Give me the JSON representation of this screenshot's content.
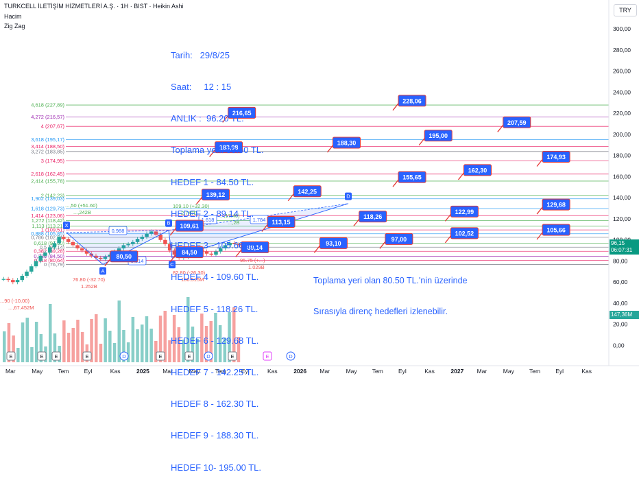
{
  "header": {
    "symbol_line": "TURKCELL İLETİŞİM HİZMETLERİ A.Ş. · 1H · BIST · Heikin Ashi",
    "indicator_1": "Hacim",
    "indicator_2": "Zig Zag",
    "currency": "TRY"
  },
  "annotation_lines": [
    "Tarih:   29/8/25",
    "Saat:     12 : 15",
    "ANLIK :  96.20 TL.",
    "Toplama yeri: 80.50 TL.",
    "HEDEF 1 - 84.50 TL.",
    "HEDEF 2 - 89.14 TL.",
    "HEDEF 3 - 105.66 TL.",
    "HEDEF 4 - 109.60 TL.",
    "HEDEF 5 - 118.26 TL.",
    "HEDEF 6 - 129.68 TL.",
    "HEDEF 7 - 142.25 TL.",
    "HEDEF 8 - 162.30 TL.",
    "HEDEF 9 - 188.30 TL.",
    "HEDEF 10- 195.00 TL."
  ],
  "note_lines": [
    "Toplama yeri olan 80.50 TL.'nin üzerinde",
    "Sırasıyla direnç hedefleri izlenebilir."
  ],
  "price_panel": {
    "last_price": "96,15",
    "countdown": "06:07:31",
    "volume_label": "147,36M",
    "last_color": "#089981",
    "volume_color": "#26a69a"
  },
  "chart_data": {
    "type": "candlestick",
    "y_axis_ticks": [
      0,
      20,
      40,
      60,
      80,
      100,
      120,
      140,
      160,
      180,
      200,
      220,
      240,
      260,
      280,
      300
    ],
    "y_axis_labels": [
      "0,00",
      "20,00",
      "40,00",
      "60,00",
      "80,00",
      "100,00",
      "120,00",
      "140,00",
      "160,00",
      "180,00",
      "200,00",
      "220,00",
      "240,00",
      "260,00",
      "280,00",
      "300,00"
    ],
    "x_axis_labels": [
      "Mar",
      "May",
      "Tem",
      "Eyl",
      "Kas",
      "2025",
      "Mar",
      "May",
      "Tem",
      "Eyl",
      "Kas",
      "2026",
      "Mar",
      "May",
      "Tem",
      "Eyl",
      "Kas",
      "2027",
      "Mar",
      "May",
      "Tem",
      "Eyl",
      "Kas"
    ],
    "x_axis_bold": [
      "2025",
      "2026",
      "2027"
    ],
    "price_range": [
      60,
      125
    ],
    "fib_levels": [
      {
        "label": "4,618 (227,89)",
        "value": 227.89,
        "color": "#4caf50"
      },
      {
        "label": "4,272 (216,57)",
        "value": 216.57,
        "color": "#9c27b0"
      },
      {
        "label": "4 (207,67)",
        "value": 207.67,
        "color": "#e91e63"
      },
      {
        "label": "3,618 (195,17)",
        "value": 195.17,
        "color": "#2196f3"
      },
      {
        "label": "3,414 (188,50)",
        "value": 188.5,
        "color": "#e91e63"
      },
      {
        "label": "3,272 (183,85)",
        "value": 183.85,
        "color": "#787b86"
      },
      {
        "label": "3 (174,95)",
        "value": 174.95,
        "color": "#e91e63"
      },
      {
        "label": "2,618 (162,45)",
        "value": 162.45,
        "color": "#e91e63"
      },
      {
        "label": "2,414 (155,78)",
        "value": 155.78,
        "color": "#4caf50"
      },
      {
        "label": "2 (142,23)",
        "value": 142.23,
        "color": "#4caf50"
      },
      {
        "label": "1,902 (139,03)",
        "value": 139.03,
        "color": "#2196f3"
      },
      {
        "label": "1,618 (129,73)",
        "value": 129.73,
        "color": "#2196f3"
      },
      {
        "label": "1,414 (123,06)",
        "value": 123.06,
        "color": "#e91e63"
      },
      {
        "label": "1,272 (118,42)",
        "value": 118.42,
        "color": "#4caf50"
      },
      {
        "label": "1,113 (113,21)",
        "value": 113.21,
        "color": "#4caf50"
      },
      {
        "label": "1 (109,51)",
        "value": 109.51,
        "color": "#e91e63"
      },
      {
        "label": "0,888 (105,85)",
        "value": 105.85,
        "color": "#2196f3"
      },
      {
        "label": "0,786 (102,51)",
        "value": 102.51,
        "color": "#787b86"
      },
      {
        "label": "0,618 (97,00)",
        "value": 97.0,
        "color": "#4caf50"
      },
      {
        "label": "0,5 (93,14)",
        "value": 93.14,
        "color": "#787b86"
      },
      {
        "label": "0,382 (89,28)",
        "value": 89.28,
        "color": "#e91e63"
      },
      {
        "label": "0,236 (84,50)",
        "value": 84.5,
        "color": "#9c27b0"
      },
      {
        "label": "0,118 (80,64)",
        "value": 80.64,
        "color": "#e91e63"
      },
      {
        "label": "0 (76,79)",
        "value": 76.79,
        "color": "#787b86"
      }
    ],
    "target_callouts": [
      {
        "label": "228,06",
        "value": 228.06,
        "x": 15
      },
      {
        "label": "216,65",
        "value": 216.65,
        "x": 8.5
      },
      {
        "label": "207,59",
        "value": 207.59,
        "x": 19
      },
      {
        "label": "195,00",
        "value": 195.0,
        "x": 16
      },
      {
        "label": "188,30",
        "value": 188.3,
        "x": 12.5
      },
      {
        "label": "183,98",
        "value": 183.98,
        "x": 8
      },
      {
        "label": "174,93",
        "value": 174.93,
        "x": 20.5
      },
      {
        "label": "162,30",
        "value": 162.3,
        "x": 17.5
      },
      {
        "label": "155,65",
        "value": 155.65,
        "x": 15
      },
      {
        "label": "142,25",
        "value": 142.25,
        "x": 11
      },
      {
        "label": "139,12",
        "value": 139.12,
        "x": 7.5
      },
      {
        "label": "129,68",
        "value": 129.68,
        "x": 20.5
      },
      {
        "label": "122,99",
        "value": 122.99,
        "x": 17
      },
      {
        "label": "118,26",
        "value": 118.26,
        "x": 13.5
      },
      {
        "label": "113,15",
        "value": 113.15,
        "x": 10
      },
      {
        "label": "109,61",
        "value": 109.61,
        "x": 6.5
      },
      {
        "label": "105,66",
        "value": 105.66,
        "x": 20.5
      },
      {
        "label": "102,52",
        "value": 102.52,
        "x": 17
      },
      {
        "label": "97,00",
        "value": 97.0,
        "x": 14.5
      },
      {
        "label": "93,10",
        "value": 93.1,
        "x": 12
      },
      {
        "label": "89,14",
        "value": 89.14,
        "x": 9
      },
      {
        "label": "84,50",
        "value": 84.5,
        "x": 6.5
      },
      {
        "label": "80,50",
        "value": 80.5,
        "x": 4
      }
    ],
    "pattern_points": [
      {
        "label": "X",
        "value": 107
      },
      {
        "label": "A",
        "value": 76.8
      },
      {
        "label": "B",
        "value": 109.1
      },
      {
        "label": "C",
        "value": 82.8
      },
      {
        "label": "D",
        "value": 134.5
      }
    ],
    "pattern_ratios": [
      "0,988",
      "0,814",
      "1,618",
      "1,784"
    ],
    "zigzag_labels": [
      {
        "text": "76.80 (-32.70)",
        "sub": "1.252B"
      },
      {
        "text": "109.10 (+32.30)",
        "sub": "2.747B"
      },
      {
        "text": "82.80 (-26.30)",
        "sub": "186.515M"
      },
      {
        "text": "95.75 (+...)",
        "sub": "1.029B"
      },
      {
        "text": "...,50 (+51.60)",
        "sub": "...,242B"
      },
      {
        "text": "...,17.40)",
        "sub": "...,2B"
      },
      {
        "text": "...90 (-10,00)",
        "sub": "...,67.452M"
      }
    ],
    "event_markers": [
      "E",
      "E",
      "E",
      "E",
      "D",
      "E",
      "E",
      "D",
      "E",
      "E",
      "D"
    ],
    "close_series": [
      63,
      62,
      60,
      62,
      66,
      70,
      75,
      80,
      85,
      88,
      93,
      97,
      103,
      101,
      98,
      95,
      92,
      90,
      87,
      85,
      83,
      82,
      84,
      86,
      89,
      92,
      95,
      96,
      98,
      101,
      103,
      106,
      108,
      105,
      100,
      96,
      90,
      86,
      83,
      84,
      86,
      88,
      90,
      89,
      87,
      86,
      89,
      92,
      95,
      97,
      96,
      95
    ]
  }
}
